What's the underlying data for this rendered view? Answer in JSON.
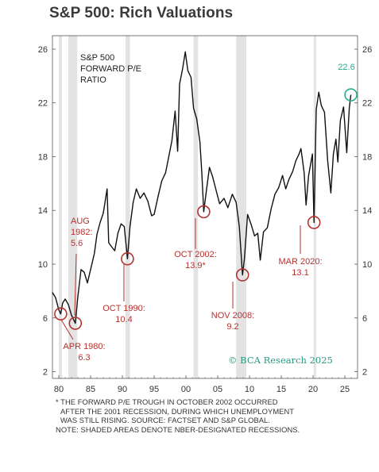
{
  "title": "S&P 500: Rich Valuations",
  "chart_data": {
    "type": "line",
    "series_label": [
      "S&P 500",
      "FORWARD P/E",
      "RATIO"
    ],
    "x_ticks": [
      "80",
      "85",
      "90",
      "95",
      "00",
      "05",
      "10",
      "15",
      "20",
      "25"
    ],
    "y_ticks": [
      2,
      6,
      10,
      14,
      18,
      22,
      26
    ],
    "xlim": [
      1979,
      2027
    ],
    "ylim": [
      1.5,
      27
    ],
    "line_color": "#111111",
    "recessions": [
      [
        1980.0,
        1980.5
      ],
      [
        1981.5,
        1982.9
      ],
      [
        1990.5,
        1991.2
      ],
      [
        2001.2,
        2001.9
      ],
      [
        2007.9,
        2009.5
      ],
      [
        2020.1,
        2020.3
      ]
    ],
    "series": [
      {
        "values": [
          [
            1979.0,
            7.9
          ],
          [
            1979.5,
            7.5
          ],
          [
            1980.0,
            6.6
          ],
          [
            1980.3,
            6.3
          ],
          [
            1980.6,
            7.1
          ],
          [
            1981.0,
            7.4
          ],
          [
            1981.5,
            7.0
          ],
          [
            1982.0,
            6.2
          ],
          [
            1982.6,
            5.6
          ],
          [
            1983.0,
            7.6
          ],
          [
            1983.5,
            9.6
          ],
          [
            1984.0,
            9.4
          ],
          [
            1984.5,
            8.6
          ],
          [
            1985.0,
            9.6
          ],
          [
            1985.6,
            10.8
          ],
          [
            1986.0,
            12.2
          ],
          [
            1986.5,
            13.1
          ],
          [
            1987.0,
            13.8
          ],
          [
            1987.6,
            15.6
          ],
          [
            1987.85,
            11.6
          ],
          [
            1988.3,
            11.3
          ],
          [
            1988.8,
            11.0
          ],
          [
            1989.3,
            12.3
          ],
          [
            1989.8,
            13.0
          ],
          [
            1990.3,
            12.8
          ],
          [
            1990.8,
            10.4
          ],
          [
            1991.2,
            12.8
          ],
          [
            1991.7,
            14.6
          ],
          [
            1992.2,
            15.6
          ],
          [
            1992.8,
            14.9
          ],
          [
            1993.4,
            15.3
          ],
          [
            1994.0,
            14.7
          ],
          [
            1994.6,
            13.6
          ],
          [
            1995.0,
            13.7
          ],
          [
            1995.6,
            15.0
          ],
          [
            1996.2,
            16.2
          ],
          [
            1996.8,
            16.8
          ],
          [
            1997.3,
            18.0
          ],
          [
            1997.8,
            19.2
          ],
          [
            1998.3,
            21.4
          ],
          [
            1998.7,
            18.4
          ],
          [
            1999.0,
            23.4
          ],
          [
            1999.5,
            24.6
          ],
          [
            1999.9,
            25.8
          ],
          [
            2000.3,
            24.4
          ],
          [
            2000.8,
            23.9
          ],
          [
            2001.2,
            21.6
          ],
          [
            2001.7,
            20.8
          ],
          [
            2002.2,
            19.1
          ],
          [
            2002.5,
            16.8
          ],
          [
            2002.8,
            13.9
          ],
          [
            2003.2,
            15.4
          ],
          [
            2003.7,
            17.2
          ],
          [
            2004.2,
            16.5
          ],
          [
            2004.8,
            15.4
          ],
          [
            2005.3,
            14.5
          ],
          [
            2006.0,
            14.9
          ],
          [
            2006.6,
            14.2
          ],
          [
            2007.3,
            15.2
          ],
          [
            2007.9,
            14.6
          ],
          [
            2008.4,
            12.8
          ],
          [
            2008.9,
            9.2
          ],
          [
            2009.2,
            10.4
          ],
          [
            2009.7,
            13.7
          ],
          [
            2010.3,
            12.9
          ],
          [
            2010.8,
            12.1
          ],
          [
            2011.3,
            12.3
          ],
          [
            2011.7,
            10.3
          ],
          [
            2012.2,
            12.4
          ],
          [
            2012.8,
            12.7
          ],
          [
            2013.4,
            14.1
          ],
          [
            2014.0,
            15.2
          ],
          [
            2014.6,
            15.7
          ],
          [
            2015.2,
            16.6
          ],
          [
            2015.7,
            15.6
          ],
          [
            2016.2,
            16.3
          ],
          [
            2016.8,
            16.9
          ],
          [
            2017.3,
            17.7
          ],
          [
            2017.8,
            18.2
          ],
          [
            2018.1,
            18.6
          ],
          [
            2018.6,
            16.8
          ],
          [
            2018.9,
            14.4
          ],
          [
            2019.3,
            16.6
          ],
          [
            2019.9,
            18.2
          ],
          [
            2020.15,
            13.1
          ],
          [
            2020.5,
            21.5
          ],
          [
            2020.9,
            22.8
          ],
          [
            2021.3,
            21.8
          ],
          [
            2021.8,
            21.3
          ],
          [
            2022.3,
            17.7
          ],
          [
            2022.8,
            15.3
          ],
          [
            2023.2,
            18.2
          ],
          [
            2023.6,
            19.3
          ],
          [
            2023.9,
            17.6
          ],
          [
            2024.3,
            20.7
          ],
          [
            2024.8,
            21.7
          ],
          [
            2025.3,
            18.3
          ],
          [
            2025.7,
            21.6
          ],
          [
            2025.95,
            22.6
          ]
        ]
      }
    ],
    "annotations": [
      {
        "lines": [
          "APR 1980:",
          "6.3"
        ],
        "x": 1980.3,
        "y": 6.3,
        "kind": "low"
      },
      {
        "lines": [
          "AUG",
          "1982:",
          "5.6"
        ],
        "x": 1982.6,
        "y": 5.6,
        "kind": "low"
      },
      {
        "lines": [
          "OCT 1990:",
          "10.4"
        ],
        "x": 1990.8,
        "y": 10.4,
        "kind": "low"
      },
      {
        "lines": [
          "OCT 2002:",
          "13.9*"
        ],
        "x": 2002.8,
        "y": 13.9,
        "kind": "low"
      },
      {
        "lines": [
          "NOV 2008:",
          "9.2"
        ],
        "x": 2008.9,
        "y": 9.2,
        "kind": "low"
      },
      {
        "lines": [
          "MAR 2020:",
          "13.1"
        ],
        "x": 2020.15,
        "y": 13.1,
        "kind": "low"
      },
      {
        "lines": [
          "22.6"
        ],
        "x": 2025.95,
        "y": 22.6,
        "kind": "latest"
      }
    ],
    "ann_color": "#b5322f",
    "latest_color": "#2aa88a",
    "recession_color": "#e3e3e3"
  },
  "brand": "© BCA Research 2025",
  "footnote": [
    "* THE FORWARD P/E TROUGH IN OCTOBER 2002 OCCURRED",
    "AFTER THE 2001 RECESSION, DURING WHICH UNEMPLOYMENT",
    "WAS STILL RISING. SOURCE: FACTSET AND S&P GLOBAL.",
    "NOTE: SHADED AREAS DENOTE NBER-DESIGNATED RECESSIONS."
  ]
}
